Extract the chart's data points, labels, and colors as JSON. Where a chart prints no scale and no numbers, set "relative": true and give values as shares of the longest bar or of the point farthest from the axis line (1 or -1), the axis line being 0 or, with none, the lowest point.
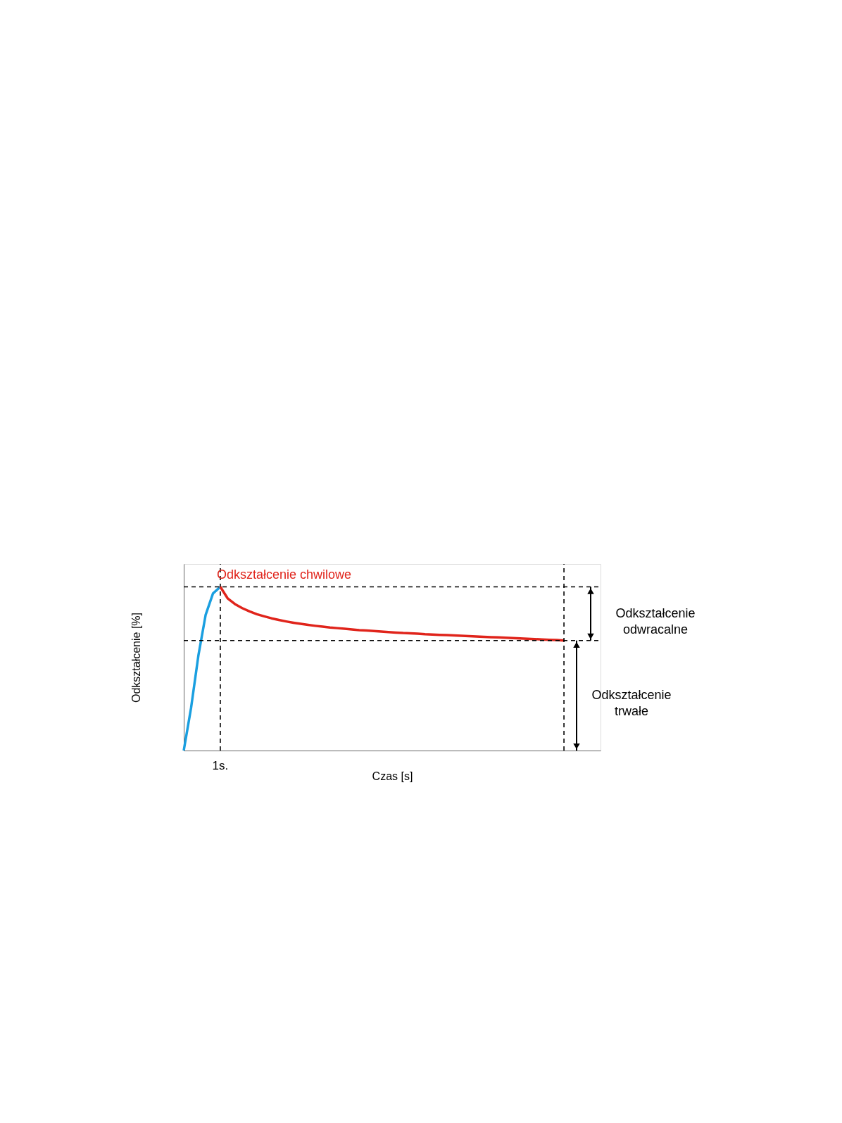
{
  "chart_data": {
    "type": "line",
    "relative": true,
    "xlabel": "Czas [s]",
    "ylabel": "Odkształcenie [%]",
    "marker": "none",
    "line_style": "solid",
    "categories": [
      null,
      null,
      null,
      null,
      null,
      null,
      null,
      null,
      null,
      null,
      null,
      null,
      null,
      null,
      null,
      null,
      null,
      null,
      null,
      null,
      null,
      null,
      null,
      null,
      null,
      null,
      null,
      null,
      null,
      null,
      null,
      null,
      null,
      null,
      null,
      null,
      null,
      null,
      null,
      null,
      null,
      null,
      null,
      null,
      null,
      null,
      null,
      null,
      null,
      null,
      null,
      null,
      null,
      null,
      null,
      null,
      null,
      null
    ],
    "series": [
      {
        "color": "#1a9fe0",
        "values": [
          0,
          0.26,
          0.58,
          0.83,
          0.96,
          1,
          null,
          null,
          null,
          null,
          null,
          null,
          null,
          null,
          null,
          null,
          null,
          null,
          null,
          null,
          null,
          null,
          null,
          null,
          null,
          null,
          null,
          null,
          null,
          null,
          null,
          null,
          null,
          null,
          null,
          null,
          null,
          null,
          null,
          null,
          null,
          null,
          null,
          null,
          null,
          null,
          null,
          null,
          null,
          null,
          null,
          null,
          null,
          null,
          null,
          null,
          null,
          null
        ]
      },
      {
        "color": "#e0241b",
        "values": [
          null,
          null,
          null,
          null,
          null,
          1,
          0.93,
          0.895,
          0.87,
          0.85,
          0.833,
          0.82,
          0.808,
          0.798,
          0.789,
          0.781,
          0.774,
          0.768,
          0.762,
          0.757,
          0.752,
          0.748,
          0.744,
          0.74,
          0.736,
          0.733,
          0.73,
          0.727,
          0.724,
          0.721,
          0.718,
          0.716,
          0.714,
          0.711,
          0.709,
          0.707,
          0.705,
          0.703,
          0.701,
          0.699,
          0.697,
          0.695,
          0.693,
          0.691,
          0.689,
          0.687,
          0.685,
          0.683,
          0.681,
          0.679,
          0.677,
          0.675,
          0.672,
          null,
          null,
          null,
          null,
          null
        ]
      }
    ],
    "annotations": [
      "Odkształcenie chwilowe",
      "1s.",
      "Odkształcenie odwracalne",
      "Odkształcenie trwałe"
    ]
  }
}
